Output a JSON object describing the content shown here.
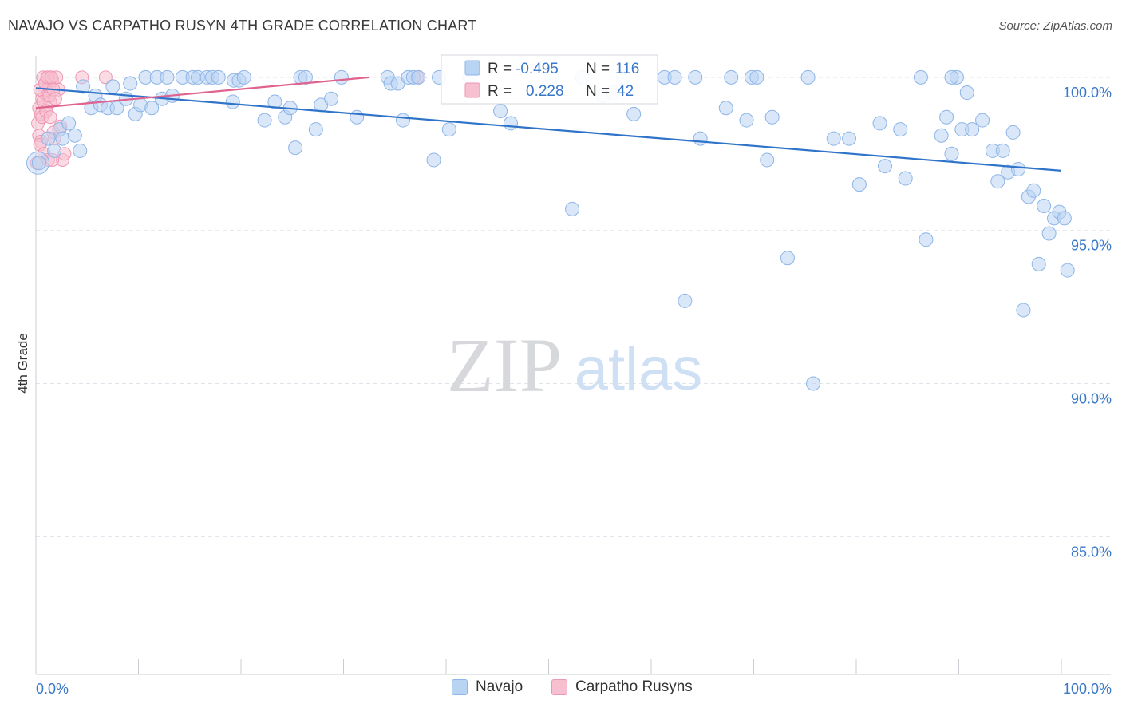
{
  "title": "NAVAJO VS CARPATHO RUSYN 4TH GRADE CORRELATION CHART",
  "source": "Source: ZipAtlas.com",
  "watermark": {
    "zip": "ZIP",
    "atlas": "atlas"
  },
  "colors": {
    "navajo_fill": "#b9d3f3",
    "navajo_stroke": "#8db5e8",
    "navajo_line": "#2f74c9",
    "rusyn_fill": "#f7c0d0",
    "rusyn_stroke": "#ee97b3",
    "rusyn_line": "#e0628e",
    "tick_label": "#3a78c9",
    "grid": "#dfe3ea"
  },
  "legend_box": {
    "rows": [
      {
        "r_label": "R =",
        "r_value": "-0.495",
        "n_label": "N =",
        "n_value": "116"
      },
      {
        "r_label": "R =",
        "r_value": "0.228",
        "n_label": "N =",
        "n_value": "42"
      }
    ]
  },
  "legend_bottom": [
    "Navajo",
    "Carpatho Rusyns"
  ],
  "chart_data": {
    "type": "scatter",
    "title": "NAVAJO VS CARPATHO RUSYN 4TH GRADE CORRELATION CHART",
    "xlabel": "",
    "ylabel": "4th Grade",
    "xlim": [
      0,
      100
    ],
    "ylim": [
      80.5,
      100.7
    ],
    "x_tick_labels": [
      "0.0%",
      "100.0%"
    ],
    "y_ticks": [
      100,
      95,
      90,
      85
    ],
    "y_tick_labels": [
      "100.0%",
      "95.0%",
      "90.0%",
      "85.0%"
    ],
    "legend_position": "top-center",
    "series": [
      {
        "name": "Navajo",
        "R": -0.495,
        "N": 116,
        "trend": {
          "x": [
            0,
            100
          ],
          "y": [
            99.65,
            96.95
          ]
        },
        "points": [
          [
            0.3,
            97.2
          ],
          [
            1.2,
            98.0
          ],
          [
            1.8,
            97.6
          ],
          [
            2.3,
            98.3
          ],
          [
            2.6,
            98.0
          ],
          [
            3.2,
            98.5
          ],
          [
            3.8,
            98.1
          ],
          [
            4.3,
            97.6
          ],
          [
            4.6,
            99.7
          ],
          [
            5.4,
            99.0
          ],
          [
            5.8,
            99.4
          ],
          [
            6.3,
            99.1
          ],
          [
            7.0,
            99.0
          ],
          [
            7.5,
            99.7
          ],
          [
            7.9,
            99.0
          ],
          [
            8.8,
            99.3
          ],
          [
            9.2,
            99.8
          ],
          [
            9.7,
            98.8
          ],
          [
            10.2,
            99.1
          ],
          [
            10.7,
            100.0
          ],
          [
            11.3,
            99.0
          ],
          [
            11.8,
            100.0
          ],
          [
            12.3,
            99.3
          ],
          [
            12.8,
            100.0
          ],
          [
            13.3,
            99.4
          ],
          [
            14.3,
            100.0
          ],
          [
            15.3,
            100.0
          ],
          [
            15.8,
            100.0
          ],
          [
            16.7,
            100.0
          ],
          [
            17.2,
            100.0
          ],
          [
            17.8,
            100.0
          ],
          [
            19.2,
            99.2
          ],
          [
            19.3,
            99.9
          ],
          [
            19.8,
            99.9
          ],
          [
            20.3,
            100.0
          ],
          [
            22.3,
            98.6
          ],
          [
            23.3,
            99.2
          ],
          [
            24.3,
            98.7
          ],
          [
            24.8,
            99.0
          ],
          [
            25.3,
            97.7
          ],
          [
            25.8,
            100.0
          ],
          [
            26.3,
            100.0
          ],
          [
            27.3,
            98.3
          ],
          [
            27.8,
            99.1
          ],
          [
            28.8,
            99.3
          ],
          [
            29.8,
            100.0
          ],
          [
            31.3,
            98.7
          ],
          [
            34.3,
            100.0
          ],
          [
            34.6,
            99.8
          ],
          [
            35.3,
            99.8
          ],
          [
            35.8,
            98.6
          ],
          [
            36.3,
            100.0
          ],
          [
            36.8,
            100.0
          ],
          [
            37.3,
            100.0
          ],
          [
            38.8,
            97.3
          ],
          [
            39.3,
            100.0
          ],
          [
            40.3,
            98.3
          ],
          [
            42.3,
            100.0
          ],
          [
            45.3,
            98.9
          ],
          [
            46.3,
            98.5
          ],
          [
            50.3,
            100.0
          ],
          [
            52.3,
            95.7
          ],
          [
            53.3,
            100.0
          ],
          [
            55.3,
            99.4
          ],
          [
            56.3,
            99.5
          ],
          [
            57.3,
            100.0
          ],
          [
            58.3,
            98.8
          ],
          [
            61.3,
            100.0
          ],
          [
            62.3,
            100.0
          ],
          [
            63.3,
            92.7
          ],
          [
            64.3,
            100.0
          ],
          [
            64.8,
            98.0
          ],
          [
            67.3,
            99.0
          ],
          [
            67.8,
            100.0
          ],
          [
            69.3,
            98.6
          ],
          [
            69.8,
            100.0
          ],
          [
            70.3,
            100.0
          ],
          [
            71.3,
            97.3
          ],
          [
            71.8,
            98.7
          ],
          [
            73.3,
            94.1
          ],
          [
            75.3,
            100.0
          ],
          [
            75.8,
            90.0
          ],
          [
            77.8,
            98.0
          ],
          [
            79.3,
            98.0
          ],
          [
            80.3,
            96.5
          ],
          [
            82.3,
            98.5
          ],
          [
            82.8,
            97.1
          ],
          [
            84.3,
            98.3
          ],
          [
            84.8,
            96.7
          ],
          [
            86.3,
            100.0
          ],
          [
            86.8,
            94.7
          ],
          [
            88.3,
            98.1
          ],
          [
            88.8,
            98.7
          ],
          [
            89.3,
            97.5
          ],
          [
            89.8,
            100.0
          ],
          [
            90.3,
            98.3
          ],
          [
            90.8,
            99.5
          ],
          [
            91.3,
            98.3
          ],
          [
            92.3,
            98.6
          ],
          [
            93.3,
            97.6
          ],
          [
            93.8,
            96.6
          ],
          [
            94.3,
            97.6
          ],
          [
            94.8,
            96.9
          ],
          [
            95.3,
            98.2
          ],
          [
            95.8,
            97.0
          ],
          [
            96.3,
            92.4
          ],
          [
            96.8,
            96.1
          ],
          [
            97.3,
            96.3
          ],
          [
            97.8,
            93.9
          ],
          [
            98.3,
            95.8
          ],
          [
            98.8,
            94.9
          ],
          [
            99.3,
            95.4
          ],
          [
            99.8,
            95.6
          ],
          [
            100.3,
            95.4
          ],
          [
            100.6,
            93.7
          ],
          [
            89.3,
            100.0
          ]
        ]
      },
      {
        "name": "Carpatho Rusyns",
        "R": 0.228,
        "N": 42,
        "trend": {
          "x": [
            0,
            32.5
          ],
          "y": [
            99.0,
            100.0
          ]
        },
        "points": [
          [
            0.1,
            97.2
          ],
          [
            0.2,
            98.5
          ],
          [
            0.3,
            99.0
          ],
          [
            0.4,
            99.6
          ],
          [
            0.5,
            98.8
          ],
          [
            0.6,
            99.3
          ],
          [
            0.7,
            100.0
          ],
          [
            0.8,
            99.5
          ],
          [
            0.9,
            99.8
          ],
          [
            1.0,
            98.9
          ],
          [
            1.1,
            99.4
          ],
          [
            1.2,
            100.0
          ],
          [
            1.3,
            99.7
          ],
          [
            1.4,
            99.2
          ],
          [
            1.5,
            100.0
          ],
          [
            1.6,
            99.9
          ],
          [
            1.7,
            98.2
          ],
          [
            1.8,
            98.0
          ],
          [
            2.0,
            100.0
          ],
          [
            2.2,
            99.6
          ],
          [
            0.3,
            98.1
          ],
          [
            0.5,
            97.9
          ],
          [
            0.7,
            99.2
          ],
          [
            0.9,
            99.8
          ],
          [
            1.1,
            100.0
          ],
          [
            1.3,
            99.4
          ],
          [
            1.5,
            100.0
          ],
          [
            1.7,
            99.6
          ],
          [
            1.9,
            99.3
          ],
          [
            2.4,
            98.4
          ],
          [
            2.6,
            97.3
          ],
          [
            2.8,
            97.5
          ],
          [
            0.4,
            97.8
          ],
          [
            0.8,
            97.5
          ],
          [
            1.2,
            97.3
          ],
          [
            1.6,
            97.3
          ],
          [
            0.6,
            98.7
          ],
          [
            1.0,
            98.9
          ],
          [
            4.5,
            100.0
          ],
          [
            6.8,
            100.0
          ],
          [
            37.2,
            100.0
          ],
          [
            1.4,
            98.7
          ]
        ]
      }
    ]
  }
}
